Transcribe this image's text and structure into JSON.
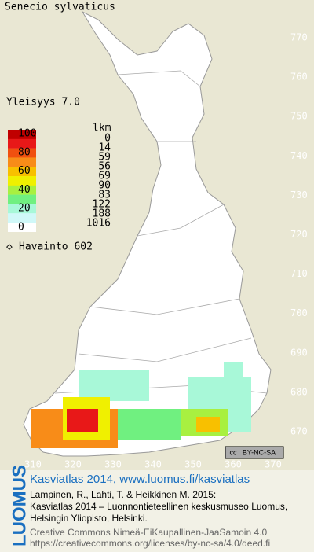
{
  "title": "Senecio sylvaticus",
  "frequency_label": "Yleisyys 7.0",
  "legend": {
    "count_header": "lkm",
    "scale": [
      100,
      80,
      60,
      40,
      20,
      0
    ],
    "counts": [
      0,
      14,
      59,
      56,
      69,
      90,
      83,
      122,
      188,
      1016
    ],
    "colors": [
      "#c00000",
      "#e81818",
      "#f05010",
      "#f88c18",
      "#f8c000",
      "#f0f000",
      "#a8f040",
      "#70f080",
      "#a8f8d8",
      "#d0f8f8"
    ],
    "observations": "Havainto 602"
  },
  "axes": {
    "y_ticks": [
      770,
      760,
      750,
      740,
      730,
      720,
      710,
      700,
      690,
      680,
      670
    ],
    "x_ticks": [
      310,
      320,
      330,
      340,
      350,
      360,
      370
    ]
  },
  "license": "BY-NC-SA",
  "logo": "LUOMUS",
  "footer": {
    "link": "Kasviatlas 2014, www.luomus.fi/kasviatlas",
    "citation": [
      "Lampinen, R., Lahti, T. & Heikkinen M. 2015:",
      "Kasviatlas 2014 – Luonnontieteellinen keskusmuseo Luomus,",
      "Helsingin Yliopisto, Helsinki."
    ],
    "license_lines": [
      "Creative Commons Nimeä-EiKaupallinen-JaaSamoin 4.0",
      "https://creativecommons.org/licenses/by-nc-sa/4.0/deed.fi"
    ]
  }
}
